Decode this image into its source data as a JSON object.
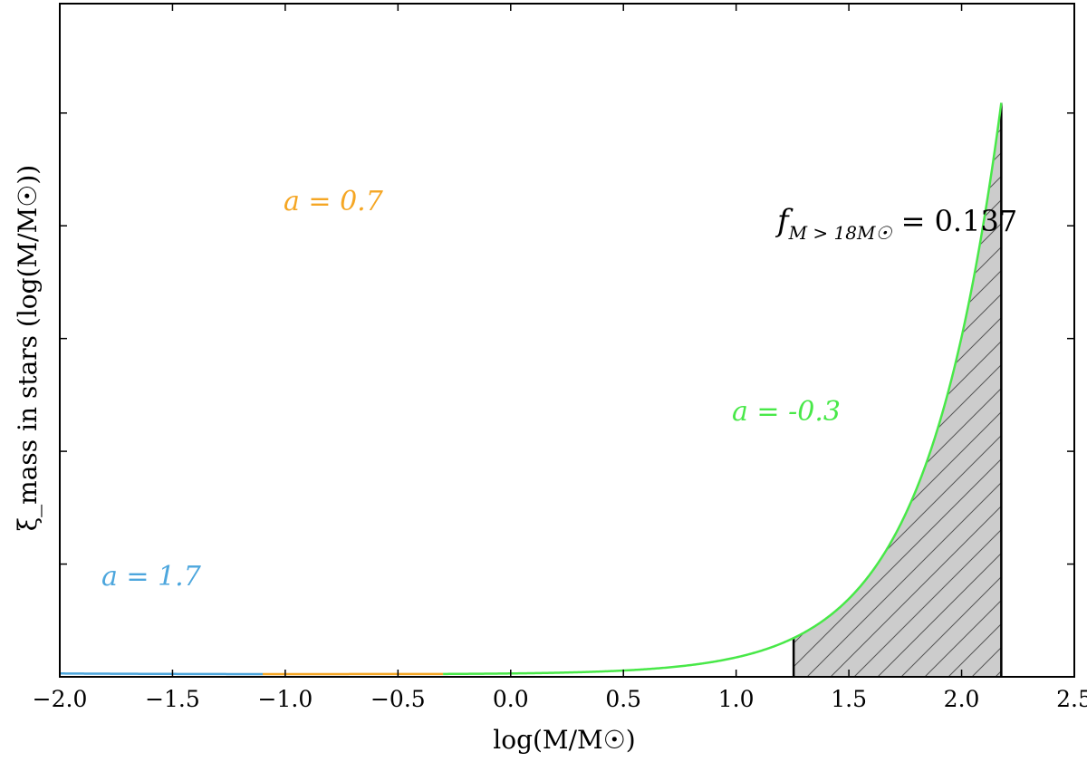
{
  "chart_data": {
    "type": "line",
    "title": "",
    "xlabel": "log(M/M☉)",
    "ylabel": "ξ_mass in stars (log(M/M☉))",
    "xlim": [
      -2.0,
      2.5
    ],
    "ylim": [
      0,
      1
    ],
    "x_ticks": [
      -2.0,
      -1.5,
      -1.0,
      -0.5,
      0.0,
      0.5,
      1.0,
      1.5,
      2.0,
      2.5
    ],
    "x_tick_labels": [
      "−2.0",
      "−1.5",
      "−1.0",
      "−0.5",
      "0.0",
      "0.5",
      "1.0",
      "1.5",
      "2.0",
      "2.5"
    ],
    "y_ticks": [
      0.2,
      0.4,
      0.6,
      0.8,
      1.0
    ],
    "y_tick_labels_shown": false,
    "grid": false,
    "series": [
      {
        "name": "a = 1.7",
        "color": "#4ca6dd",
        "alpha": 1.7,
        "x_range": [
          -2.0,
          -1.1
        ]
      },
      {
        "name": "a = 0.7",
        "color": "#f5a623",
        "alpha": 0.7,
        "x_range": [
          -1.1,
          -0.3
        ]
      },
      {
        "name": "a = -0.3",
        "color": "#48e848",
        "alpha": -0.3,
        "x_range": [
          -0.3,
          2.176
        ]
      }
    ],
    "shaded_region": {
      "x_range": [
        1.255,
        2.176
      ],
      "fill": "#cccccc",
      "hatch": "/"
    },
    "annotations": [
      {
        "text_pre": "f",
        "text_sub": "M > 18M☉",
        "text_post": " = 0.137",
        "position": "right-upper"
      }
    ]
  }
}
